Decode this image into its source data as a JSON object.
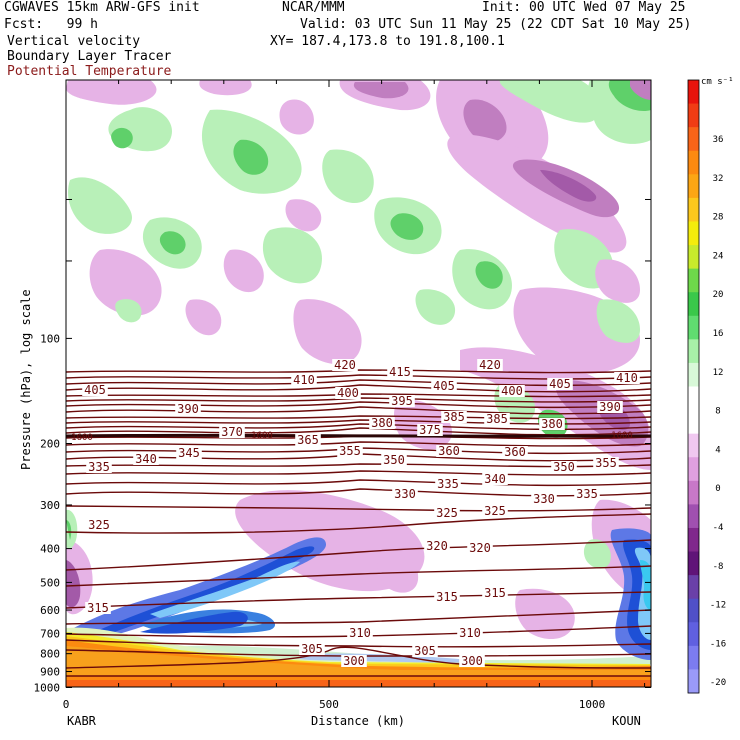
{
  "header": {
    "model": "CGWAVES 15km ARW-GFS init",
    "center": "NCAR/MMM",
    "init": "Init: 00 UTC Wed 07 May 25",
    "fcst": "Fcst:   99 h",
    "valid": "Valid: 03 UTC Sun 11 May 25 (22 CDT Sat 10 May 25)",
    "field1": "Vertical velocity",
    "field2": "Boundary Layer Tracer",
    "field3": "Potential Temperature",
    "xy": "XY= 187.4,173.8 to 191.8,100.1",
    "field3_color": "#8b1a1a"
  },
  "chart_data": {
    "type": "cross-section",
    "xlabel": "Distance (km)",
    "ylabel": "Pressure (hPa), log scale",
    "x_ticks": [
      0,
      500,
      1000
    ],
    "xlim": [
      0,
      1100
    ],
    "y_ticks": [
      100,
      200,
      300,
      400,
      500,
      600,
      700,
      800,
      900,
      1000
    ],
    "y_scale": "log",
    "endpoints": {
      "left": "KABR",
      "right": "KOUN"
    },
    "colorbar": {
      "unit": "cm s⁻¹",
      "labels": [
        36,
        32,
        28,
        24,
        20,
        16,
        12,
        8,
        4,
        0,
        -4,
        -8,
        -12,
        -16,
        -20
      ],
      "colors": [
        "#e8140c",
        "#f03c14",
        "#f86418",
        "#fc8a10",
        "#fca614",
        "#fcc81c",
        "#f4ec0c",
        "#c8ea2c",
        "#6ed84a",
        "#3ac84a",
        "#60dc70",
        "#a8f0a8",
        "#d8f8d8",
        "#ffffff",
        "#ffffff",
        "#f0c8f0",
        "#e0a0e0",
        "#c878c8",
        "#a050b0",
        "#80288c",
        "#601478",
        "#6a40a8",
        "#5050c8",
        "#6060e0",
        "#7c7cf0",
        "#9a9af8"
      ]
    },
    "theta_labels": [
      {
        "v": 420,
        "x": 345,
        "y": 368
      },
      {
        "v": 415,
        "x": 400,
        "y": 375
      },
      {
        "v": 420,
        "x": 490,
        "y": 368
      },
      {
        "v": 410,
        "x": 304,
        "y": 383
      },
      {
        "v": 410,
        "x": 627,
        "y": 381
      },
      {
        "v": 405,
        "x": 95,
        "y": 393
      },
      {
        "v": 400,
        "x": 348,
        "y": 396
      },
      {
        "v": 405,
        "x": 444,
        "y": 389
      },
      {
        "v": 400,
        "x": 512,
        "y": 394
      },
      {
        "v": 405,
        "x": 560,
        "y": 387
      },
      {
        "v": 395,
        "x": 402,
        "y": 404
      },
      {
        "v": 390,
        "x": 188,
        "y": 412
      },
      {
        "v": 390,
        "x": 610,
        "y": 410
      },
      {
        "v": 385,
        "x": 454,
        "y": 420
      },
      {
        "v": 385,
        "x": 497,
        "y": 422
      },
      {
        "v": 380,
        "x": 382,
        "y": 426
      },
      {
        "v": 380,
        "x": 552,
        "y": 427
      },
      {
        "v": 375,
        "x": 430,
        "y": 433
      },
      {
        "v": 370,
        "x": 232,
        "y": 435
      },
      {
        "v": 365,
        "x": 308,
        "y": 443
      },
      {
        "v": 355,
        "x": 350,
        "y": 454
      },
      {
        "v": 360,
        "x": 449,
        "y": 454
      },
      {
        "v": 360,
        "x": 515,
        "y": 455
      },
      {
        "v": 345,
        "x": 189,
        "y": 456
      },
      {
        "v": 340,
        "x": 146,
        "y": 462
      },
      {
        "v": 350,
        "x": 394,
        "y": 463
      },
      {
        "v": 335,
        "x": 99,
        "y": 470
      },
      {
        "v": 350,
        "x": 564,
        "y": 470
      },
      {
        "v": 355,
        "x": 606,
        "y": 466
      },
      {
        "v": 340,
        "x": 495,
        "y": 482
      },
      {
        "v": 335,
        "x": 448,
        "y": 487
      },
      {
        "v": 330,
        "x": 405,
        "y": 497
      },
      {
        "v": 330,
        "x": 544,
        "y": 502
      },
      {
        "v": 335,
        "x": 587,
        "y": 497
      },
      {
        "v": 325,
        "x": 99,
        "y": 528
      },
      {
        "v": 325,
        "x": 447,
        "y": 516
      },
      {
        "v": 325,
        "x": 495,
        "y": 514
      },
      {
        "v": 320,
        "x": 437,
        "y": 549
      },
      {
        "v": 320,
        "x": 480,
        "y": 551
      },
      {
        "v": 315,
        "x": 98,
        "y": 611
      },
      {
        "v": 315,
        "x": 447,
        "y": 600
      },
      {
        "v": 315,
        "x": 495,
        "y": 596
      },
      {
        "v": 310,
        "x": 360,
        "y": 636
      },
      {
        "v": 310,
        "x": 470,
        "y": 636
      },
      {
        "v": 305,
        "x": 312,
        "y": 652
      },
      {
        "v": 305,
        "x": 425,
        "y": 654
      },
      {
        "v": 300,
        "x": 354,
        "y": 664
      },
      {
        "v": 300,
        "x": 472,
        "y": 664
      }
    ],
    "theta_ann": [
      {
        "v": "1600",
        "x": 82,
        "y": 439
      },
      {
        "v": "1600",
        "x": 262,
        "y": 437
      },
      {
        "v": "1600",
        "x": 622,
        "y": 437
      }
    ]
  }
}
